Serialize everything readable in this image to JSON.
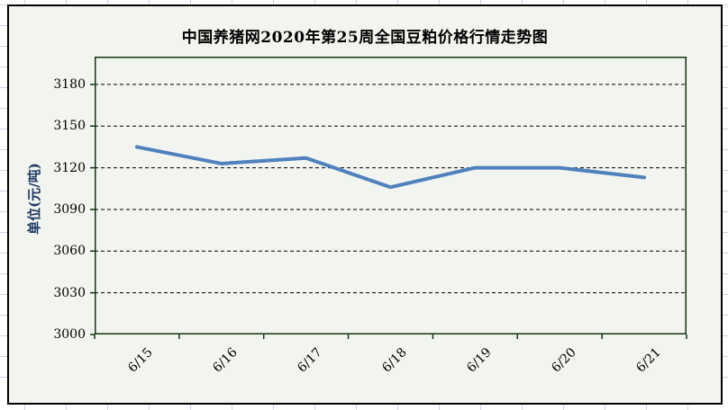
{
  "chart_data": {
    "type": "line",
    "title": "中国养猪网2020年第25周全国豆粕价格行情走势图",
    "ylabel": "单位(元/吨)",
    "xlabel": "",
    "categories": [
      "6/15",
      "6/16",
      "6/17",
      "6/18",
      "6/19",
      "6/20",
      "6/21"
    ],
    "values": [
      3135,
      3123,
      3127,
      3106,
      3120,
      3120,
      3113
    ],
    "yticks": [
      3000,
      3030,
      3060,
      3090,
      3120,
      3150,
      3180
    ],
    "ylim": [
      3000,
      3200
    ],
    "grid": "horizontal-dashed",
    "legend": "none",
    "colors": {
      "line": "#4f81bd",
      "gridline": "#000000",
      "plot_border": "#12340f",
      "tick": "#12340f",
      "axis_title_text": "#1f3864",
      "title_text": "#000000",
      "tick_label_text": "#000000",
      "chart_background": "#f2f5ef",
      "chart_border": "#000000",
      "sheet_gridline": "#cbd4e4"
    }
  }
}
